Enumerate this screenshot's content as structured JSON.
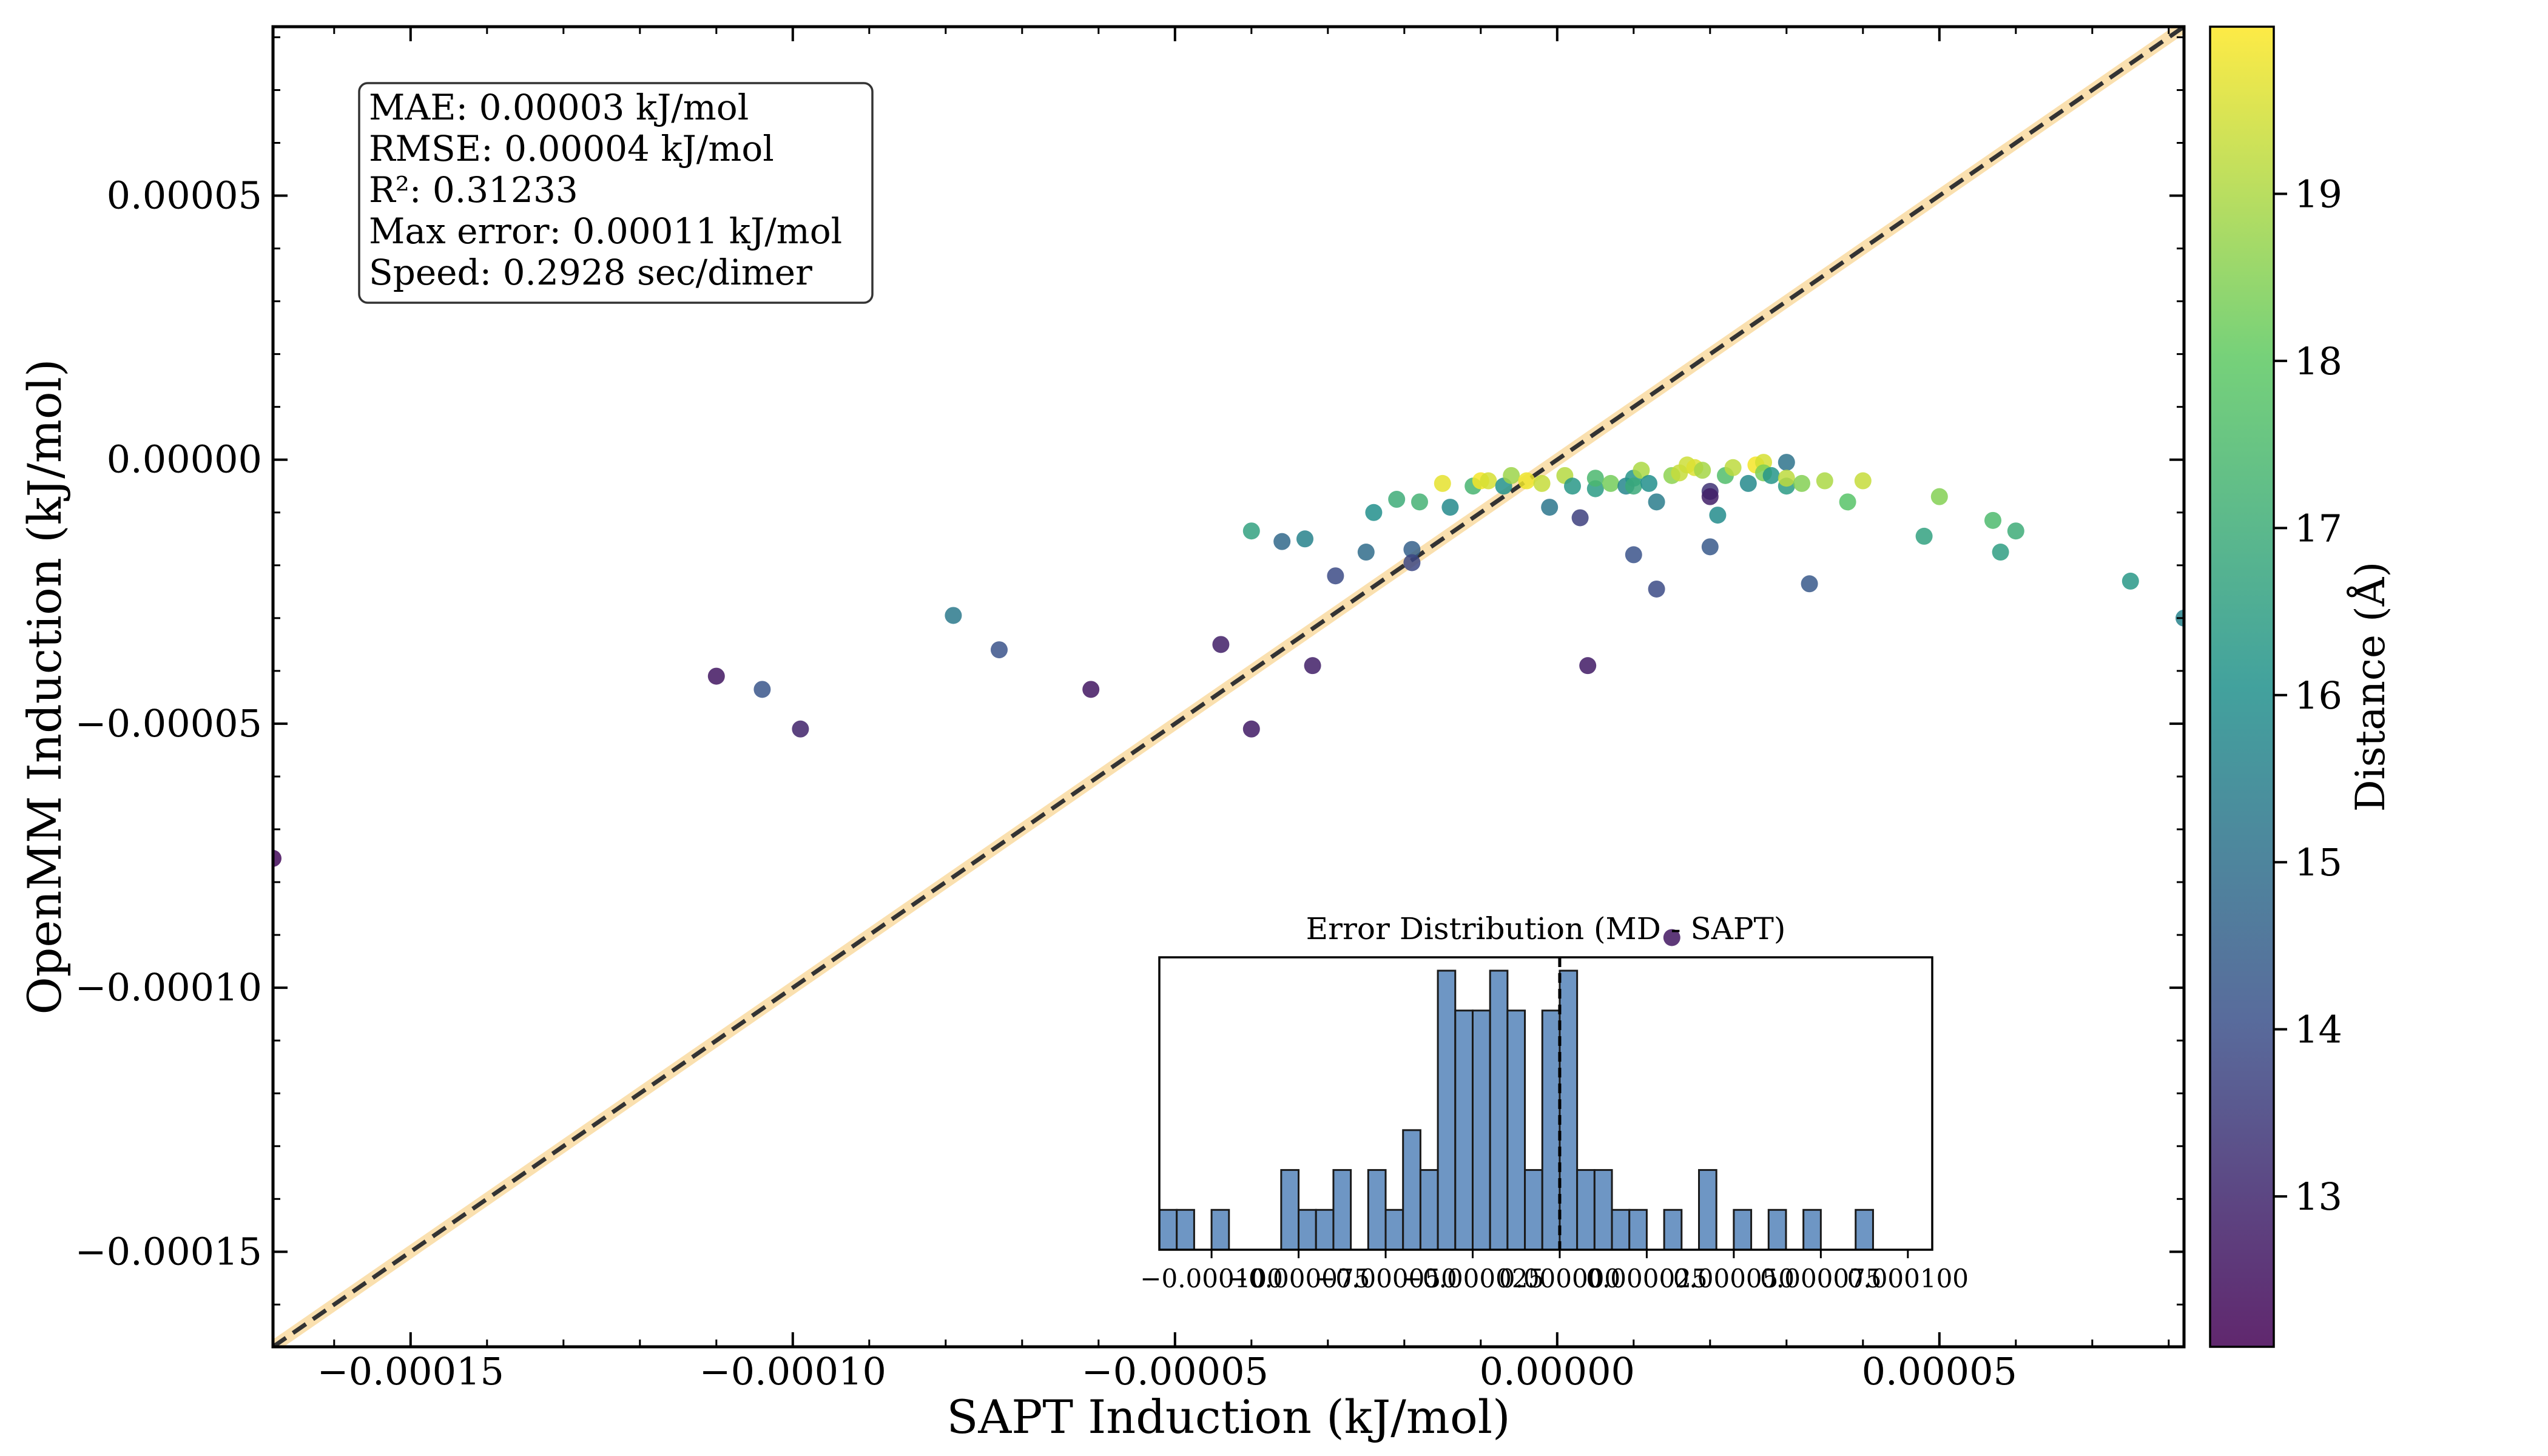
{
  "chart_data": [
    {
      "type": "scatter",
      "xlabel": "SAPT Induction (kJ/mol)",
      "ylabel": "OpenMM Induction (kJ/mol)",
      "xlim": [
        -0.000168,
        8.2e-05
      ],
      "ylim": [
        -0.000168,
        8.2e-05
      ],
      "xticks": [
        -0.00015,
        -0.0001,
        -5e-05,
        0.0,
        5e-05
      ],
      "xtick_labels": [
        "−0.00015",
        "−0.00010",
        "−0.00005",
        "0.00000",
        "0.00005"
      ],
      "yticks": [
        -0.00015,
        -0.0001,
        -5e-05,
        0.0,
        5e-05
      ],
      "ytick_labels": [
        "−0.00015",
        "−0.00010",
        "−0.00005",
        "0.00000",
        "0.00005"
      ],
      "reference_line": "y = x",
      "grid": false,
      "stats_box": [
        "MAE: 0.00003 kJ/mol",
        "RMSE: 0.00004 kJ/mol",
        "R²: 0.31233",
        "Max error: 0.00011 kJ/mol",
        "Speed: 0.2928 sec/dimer"
      ],
      "colorbar": {
        "label": "Distance (Å)",
        "range": [
          12.1,
          20.0
        ],
        "ticks": [
          13,
          14,
          15,
          16,
          17,
          18,
          19
        ],
        "colormap": [
          "#440154",
          "#3b528b",
          "#21918c",
          "#5ec962",
          "#fde725"
        ]
      },
      "points": [
        {
          "x": -0.000168,
          "y": -7.55e-05,
          "d": 12.3
        },
        {
          "x": -0.00011,
          "y": -4.1e-05,
          "d": 12.6
        },
        {
          "x": -0.000104,
          "y": -4.35e-05,
          "d": 14.2
        },
        {
          "x": -9.9e-05,
          "y": -5.1e-05,
          "d": 12.9
        },
        {
          "x": -7.9e-05,
          "y": -2.95e-05,
          "d": 15.3
        },
        {
          "x": -7.3e-05,
          "y": -3.6e-05,
          "d": 14.1
        },
        {
          "x": -6.1e-05,
          "y": -4.35e-05,
          "d": 12.6
        },
        {
          "x": -4.4e-05,
          "y": -3.5e-05,
          "d": 12.8
        },
        {
          "x": -4e-05,
          "y": -5.1e-05,
          "d": 12.7
        },
        {
          "x": -4e-05,
          "y": -1.35e-05,
          "d": 16.6
        },
        {
          "x": -3.6e-05,
          "y": -1.55e-05,
          "d": 14.8
        },
        {
          "x": -3.3e-05,
          "y": -1.5e-05,
          "d": 15.6
        },
        {
          "x": -3.2e-05,
          "y": -3.9e-05,
          "d": 12.8
        },
        {
          "x": -2.9e-05,
          "y": -2.2e-05,
          "d": 13.9
        },
        {
          "x": -2.5e-05,
          "y": -1.75e-05,
          "d": 14.9
        },
        {
          "x": -2.4e-05,
          "y": -1e-05,
          "d": 16.0
        },
        {
          "x": -2.1e-05,
          "y": -7.5e-06,
          "d": 17.0
        },
        {
          "x": -1.9e-05,
          "y": -1.7e-05,
          "d": 14.5
        },
        {
          "x": -1.9e-05,
          "y": -1.95e-05,
          "d": 13.8
        },
        {
          "x": -1.8e-05,
          "y": -8e-06,
          "d": 17.2
        },
        {
          "x": -1.5e-05,
          "y": -4.5e-06,
          "d": 19.7
        },
        {
          "x": -1.4e-05,
          "y": -9e-06,
          "d": 15.8
        },
        {
          "x": -1.1e-05,
          "y": -5e-06,
          "d": 17.3
        },
        {
          "x": -1e-05,
          "y": -4e-06,
          "d": 19.9
        },
        {
          "x": -9e-06,
          "y": -4e-06,
          "d": 19.5
        },
        {
          "x": -7e-06,
          "y": -5e-06,
          "d": 16.1
        },
        {
          "x": -6e-06,
          "y": -3e-06,
          "d": 18.8
        },
        {
          "x": -4e-06,
          "y": -4e-06,
          "d": 19.8
        },
        {
          "x": -2e-06,
          "y": -4.5e-06,
          "d": 19.3
        },
        {
          "x": -1e-06,
          "y": -9e-06,
          "d": 15.2
        },
        {
          "x": 1e-06,
          "y": -3e-06,
          "d": 19.1
        },
        {
          "x": 2e-06,
          "y": -5e-06,
          "d": 16.3
        },
        {
          "x": 3e-06,
          "y": -1.1e-05,
          "d": 13.6
        },
        {
          "x": 4e-06,
          "y": -3.9e-05,
          "d": 12.7
        },
        {
          "x": 5e-06,
          "y": -5.5e-06,
          "d": 16.4
        },
        {
          "x": 5e-06,
          "y": -3.5e-06,
          "d": 17.4
        },
        {
          "x": 7e-06,
          "y": -4.5e-06,
          "d": 18.3
        },
        {
          "x": 9e-06,
          "y": -5e-06,
          "d": 15.7
        },
        {
          "x": 1e-05,
          "y": -3.5e-06,
          "d": 16.2
        },
        {
          "x": 1e-05,
          "y": -5e-06,
          "d": 16.9
        },
        {
          "x": 1e-05,
          "y": -1.8e-05,
          "d": 14.1
        },
        {
          "x": 1.1e-05,
          "y": -2e-06,
          "d": 19.0
        },
        {
          "x": 1.2e-05,
          "y": -4.5e-06,
          "d": 16.0
        },
        {
          "x": 1.3e-05,
          "y": -8e-06,
          "d": 15.4
        },
        {
          "x": 1.3e-05,
          "y": -2.45e-05,
          "d": 13.9
        },
        {
          "x": 1.5e-05,
          "y": -3e-06,
          "d": 18.6
        },
        {
          "x": 1.5e-05,
          "y": -9.05e-05,
          "d": 12.6
        },
        {
          "x": 1.6e-05,
          "y": -2.5e-06,
          "d": 19.3
        },
        {
          "x": 1.7e-05,
          "y": -1e-06,
          "d": 19.4
        },
        {
          "x": 1.8e-05,
          "y": -1.5e-06,
          "d": 19.6
        },
        {
          "x": 1.9e-05,
          "y": -2e-06,
          "d": 18.9
        },
        {
          "x": 2e-05,
          "y": -6e-06,
          "d": 13.3
        },
        {
          "x": 2e-05,
          "y": -7e-06,
          "d": 12.8
        },
        {
          "x": 2e-05,
          "y": -1.65e-05,
          "d": 14.3
        },
        {
          "x": 2.1e-05,
          "y": -1.05e-05,
          "d": 15.9
        },
        {
          "x": 2.2e-05,
          "y": -3e-06,
          "d": 17.6
        },
        {
          "x": 2.3e-05,
          "y": -1.5e-06,
          "d": 19.2
        },
        {
          "x": 2.5e-05,
          "y": -4.5e-06,
          "d": 15.8
        },
        {
          "x": 2.6e-05,
          "y": -1e-06,
          "d": 19.9
        },
        {
          "x": 2.7e-05,
          "y": -5e-07,
          "d": 19.5
        },
        {
          "x": 2.7e-05,
          "y": -2.5e-06,
          "d": 18.4
        },
        {
          "x": 2.8e-05,
          "y": -3e-06,
          "d": 16.2
        },
        {
          "x": 3e-05,
          "y": -5e-06,
          "d": 16.4
        },
        {
          "x": 3e-05,
          "y": -5e-07,
          "d": 15.1
        },
        {
          "x": 3e-05,
          "y": -3.5e-06,
          "d": 19.2
        },
        {
          "x": 3.2e-05,
          "y": -4.5e-06,
          "d": 18.5
        },
        {
          "x": 3.3e-05,
          "y": -2.35e-05,
          "d": 14.3
        },
        {
          "x": 3.5e-05,
          "y": -4e-06,
          "d": 19.0
        },
        {
          "x": 3.8e-05,
          "y": -8e-06,
          "d": 17.8
        },
        {
          "x": 4e-05,
          "y": -4e-06,
          "d": 19.3
        },
        {
          "x": 4.8e-05,
          "y": -1.45e-05,
          "d": 16.6
        },
        {
          "x": 5e-05,
          "y": -7e-06,
          "d": 18.5
        },
        {
          "x": 5.7e-05,
          "y": -1.15e-05,
          "d": 17.5
        },
        {
          "x": 5.8e-05,
          "y": -1.75e-05,
          "d": 16.5
        },
        {
          "x": 6e-05,
          "y": -1.35e-05,
          "d": 17.0
        },
        {
          "x": 7.5e-05,
          "y": -2.3e-05,
          "d": 16.3
        },
        {
          "x": 8.2e-05,
          "y": -3e-05,
          "d": 15.6
        }
      ]
    },
    {
      "type": "bar",
      "title": "Error Distribution (MD - SAPT)",
      "xlim": [
        -0.000115,
        0.000107
      ],
      "xticks": [
        -0.0001,
        -7.5e-05,
        -5e-05,
        -2.5e-05,
        0.0,
        2.5e-05,
        5e-05,
        7.5e-05,
        0.0001
      ],
      "xtick_labels": [
        "−0.000100",
        "−0.000075",
        "−0.000050",
        "−0.000025",
        "0.000000",
        "0.000025",
        "0.000050",
        "0.000075",
        "0.000100"
      ],
      "bin_start": -0.000115,
      "bin_width": 5e-06,
      "counts": [
        1,
        1,
        0,
        1,
        0,
        0,
        0,
        2,
        1,
        1,
        2,
        0,
        2,
        1,
        3,
        2,
        7,
        6,
        6,
        7,
        6,
        2,
        6,
        7,
        2,
        2,
        1,
        1,
        0,
        1,
        0,
        2,
        0,
        1,
        0,
        1,
        0,
        1,
        0,
        0,
        1,
        0,
        0,
        0,
        0
      ],
      "zero_line": 0.0
    }
  ]
}
